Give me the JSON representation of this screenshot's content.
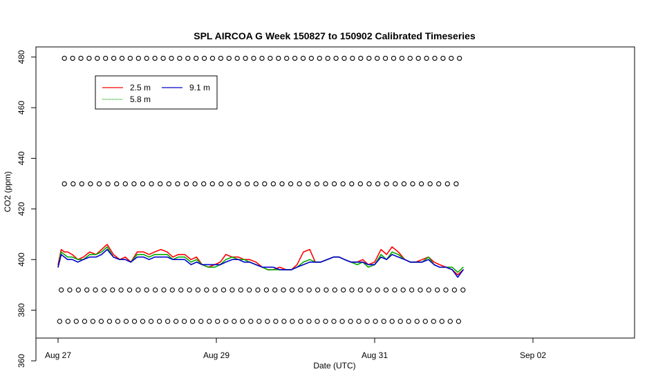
{
  "chart_data": {
    "type": "line",
    "title": "SPL AIRCOA G  Week 150827 to 150902  Calibrated Timeseries",
    "xlabel": "Date (UTC)",
    "ylabel": "CO2 (ppm)",
    "xlim": [
      "Aug 27",
      "Sep 03 06:00"
    ],
    "ylim": [
      369,
      484
    ],
    "x_ticks": [
      {
        "label": "Aug 27",
        "day": 0
      },
      {
        "label": "Aug 29",
        "day": 2
      },
      {
        "label": "Aug 31",
        "day": 4
      },
      {
        "label": "Sep 02",
        "day": 6
      }
    ],
    "y_ticks": [
      "360",
      "380",
      "400",
      "420",
      "440",
      "460",
      "480"
    ],
    "grid": false,
    "legend": {
      "placement": "top-left",
      "entries": [
        {
          "name": "2.5 m",
          "color": "#ff0000"
        },
        {
          "name": "9.1 m",
          "color": "#0000cc"
        },
        {
          "name": "5.8 m",
          "color": "#00aa00"
        }
      ]
    },
    "series": [
      {
        "name": "2.5 m",
        "color": "#ff0000",
        "x": [
          0.0,
          0.04,
          0.08,
          0.12,
          0.18,
          0.25,
          0.32,
          0.4,
          0.48,
          0.55,
          0.62,
          0.7,
          0.78,
          0.85,
          0.92,
          1.0,
          1.08,
          1.15,
          1.22,
          1.3,
          1.38,
          1.45,
          1.52,
          1.6,
          1.68,
          1.75,
          1.82,
          1.9,
          1.98,
          2.05,
          2.12,
          2.2,
          2.28,
          2.35,
          2.42,
          2.5,
          2.58,
          2.65,
          2.72,
          2.8,
          2.88,
          2.95,
          3.02,
          3.1,
          3.18,
          3.25,
          3.32,
          3.4,
          3.48,
          3.55,
          3.62,
          3.7,
          3.78,
          3.85,
          3.92,
          4.0,
          4.08,
          4.15,
          4.22,
          4.3,
          4.38,
          4.45,
          4.52,
          4.6,
          4.68,
          4.75,
          4.82,
          4.9,
          4.98,
          5.05,
          5.12
        ],
        "values": [
          398,
          404,
          403,
          403,
          402,
          400,
          401,
          403,
          402,
          404,
          406,
          402,
          400,
          401,
          399,
          403,
          403,
          402,
          403,
          404,
          403,
          401,
          402,
          402,
          400,
          401,
          398,
          397,
          398,
          399,
          402,
          401,
          401,
          400,
          400,
          399,
          397,
          396,
          396,
          397,
          396,
          396,
          398,
          403,
          404,
          399,
          399,
          400,
          401,
          401,
          400,
          399,
          399,
          400,
          398,
          399,
          404,
          402,
          405,
          403,
          400,
          399,
          399,
          400,
          401,
          399,
          398,
          397,
          396,
          394,
          396
        ]
      },
      {
        "name": "5.8 m",
        "color": "#00aa00",
        "x": [
          0.0,
          0.04,
          0.08,
          0.12,
          0.18,
          0.25,
          0.32,
          0.4,
          0.48,
          0.55,
          0.62,
          0.7,
          0.78,
          0.85,
          0.92,
          1.0,
          1.08,
          1.15,
          1.22,
          1.3,
          1.38,
          1.45,
          1.52,
          1.6,
          1.68,
          1.75,
          1.82,
          1.9,
          1.98,
          2.05,
          2.12,
          2.2,
          2.28,
          2.35,
          2.42,
          2.5,
          2.58,
          2.65,
          2.72,
          2.8,
          2.88,
          2.95,
          3.02,
          3.1,
          3.18,
          3.25,
          3.32,
          3.4,
          3.48,
          3.55,
          3.62,
          3.7,
          3.78,
          3.85,
          3.92,
          4.0,
          4.08,
          4.15,
          4.22,
          4.3,
          4.38,
          4.45,
          4.52,
          4.6,
          4.68,
          4.75,
          4.82,
          4.9,
          4.98,
          5.05,
          5.12
        ],
        "values": [
          397,
          403,
          402,
          401,
          401,
          400,
          400,
          402,
          402,
          403,
          405,
          401,
          400,
          400,
          399,
          402,
          402,
          401,
          402,
          402,
          402,
          400,
          401,
          401,
          399,
          400,
          398,
          397,
          397,
          398,
          400,
          401,
          400,
          400,
          399,
          398,
          397,
          396,
          396,
          396,
          396,
          396,
          397,
          399,
          400,
          399,
          399,
          400,
          401,
          401,
          400,
          399,
          398,
          399,
          397,
          398,
          402,
          400,
          403,
          402,
          400,
          399,
          399,
          399,
          401,
          398,
          397,
          397,
          397,
          395,
          397
        ]
      },
      {
        "name": "9.1 m",
        "color": "#0000cc",
        "x": [
          0.0,
          0.04,
          0.08,
          0.12,
          0.18,
          0.25,
          0.32,
          0.4,
          0.48,
          0.55,
          0.62,
          0.7,
          0.78,
          0.85,
          0.92,
          1.0,
          1.08,
          1.15,
          1.22,
          1.3,
          1.38,
          1.45,
          1.52,
          1.6,
          1.68,
          1.75,
          1.82,
          1.9,
          1.98,
          2.05,
          2.12,
          2.2,
          2.28,
          2.35,
          2.42,
          2.5,
          2.58,
          2.65,
          2.72,
          2.8,
          2.88,
          2.95,
          3.02,
          3.1,
          3.18,
          3.25,
          3.32,
          3.4,
          3.48,
          3.55,
          3.62,
          3.7,
          3.78,
          3.85,
          3.92,
          4.0,
          4.08,
          4.15,
          4.22,
          4.3,
          4.38,
          4.45,
          4.52,
          4.6,
          4.68,
          4.75,
          4.82,
          4.9,
          4.98,
          5.05,
          5.12
        ],
        "values": [
          397,
          402,
          401,
          400,
          400,
          399,
          400,
          401,
          401,
          402,
          404,
          401,
          400,
          400,
          399,
          401,
          401,
          400,
          401,
          401,
          401,
          400,
          400,
          400,
          398,
          399,
          398,
          398,
          398,
          398,
          399,
          400,
          400,
          399,
          399,
          398,
          397,
          397,
          397,
          396,
          396,
          396,
          397,
          398,
          399,
          399,
          399,
          400,
          401,
          401,
          400,
          399,
          399,
          399,
          398,
          398,
          401,
          400,
          402,
          401,
          400,
          399,
          399,
          399,
          400,
          398,
          397,
          397,
          396,
          393,
          396
        ]
      }
    ],
    "reference_rows": [
      {
        "y": 479.5,
        "x_start": 0.08,
        "x_end": 5.12,
        "step": 0.104
      },
      {
        "y": 429.9,
        "x_start": 0.08,
        "x_end": 5.12,
        "step": 0.11
      },
      {
        "y": 388.0,
        "x_start": 0.04,
        "x_end": 5.12,
        "step": 0.108
      },
      {
        "y": 375.6,
        "x_start": 0.02,
        "x_end": 5.12,
        "step": 0.105
      }
    ]
  }
}
